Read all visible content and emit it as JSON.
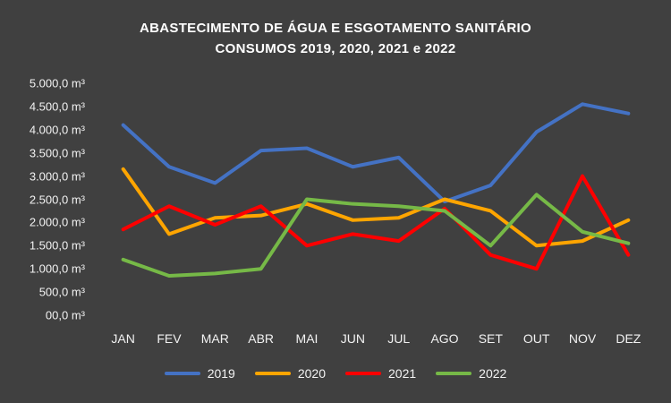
{
  "title_line1": "ABASTECIMENTO DE ÁGUA E ESGOTAMENTO SANITÁRIO",
  "title_line2": "CONSUMOS 2019, 2020, 2021 e 2022",
  "colors": {
    "background": "#404040",
    "text": "#f2f2f2"
  },
  "chart_data": {
    "type": "line",
    "title": "ABASTECIMENTO DE ÁGUA E ESGOTAMENTO SANITÁRIO CONSUMOS 2019, 2020, 2021 e 2022",
    "categories": [
      "JAN",
      "FEV",
      "MAR",
      "ABR",
      "MAI",
      "JUN",
      "JUL",
      "AGO",
      "SET",
      "OUT",
      "NOV",
      "DEZ"
    ],
    "y_ticks": [
      "5.000,0 m³",
      "4.500,0 m³",
      "4.000,0 m³",
      "3.500,0 m³",
      "3.000,0 m³",
      "2.500,0 m³",
      "2.000,0 m³",
      "1.500,0 m³",
      "1.000,0 m³",
      "500,0 m³",
      "00,0 m³"
    ],
    "ylim": [
      0,
      5000
    ],
    "grid": false,
    "legend_position": "bottom",
    "series": [
      {
        "name": "2019",
        "color": "#4472C4",
        "values": [
          4100,
          3200,
          2850,
          3550,
          3600,
          3200,
          3400,
          2450,
          2800,
          3950,
          4550,
          4350
        ]
      },
      {
        "name": "2020",
        "color": "#FFA500",
        "values": [
          3150,
          1750,
          2100,
          2150,
          2400,
          2050,
          2100,
          2500,
          2250,
          1500,
          1600,
          2050
        ]
      },
      {
        "name": "2021",
        "color": "#FF0000",
        "values": [
          1850,
          2350,
          1950,
          2350,
          1500,
          1750,
          1600,
          2300,
          1300,
          1000,
          3000,
          1300
        ]
      },
      {
        "name": "2022",
        "color": "#76B947",
        "values": [
          1200,
          850,
          900,
          1000,
          2500,
          2400,
          2350,
          2250,
          1500,
          2600,
          1800,
          1550
        ]
      }
    ]
  }
}
